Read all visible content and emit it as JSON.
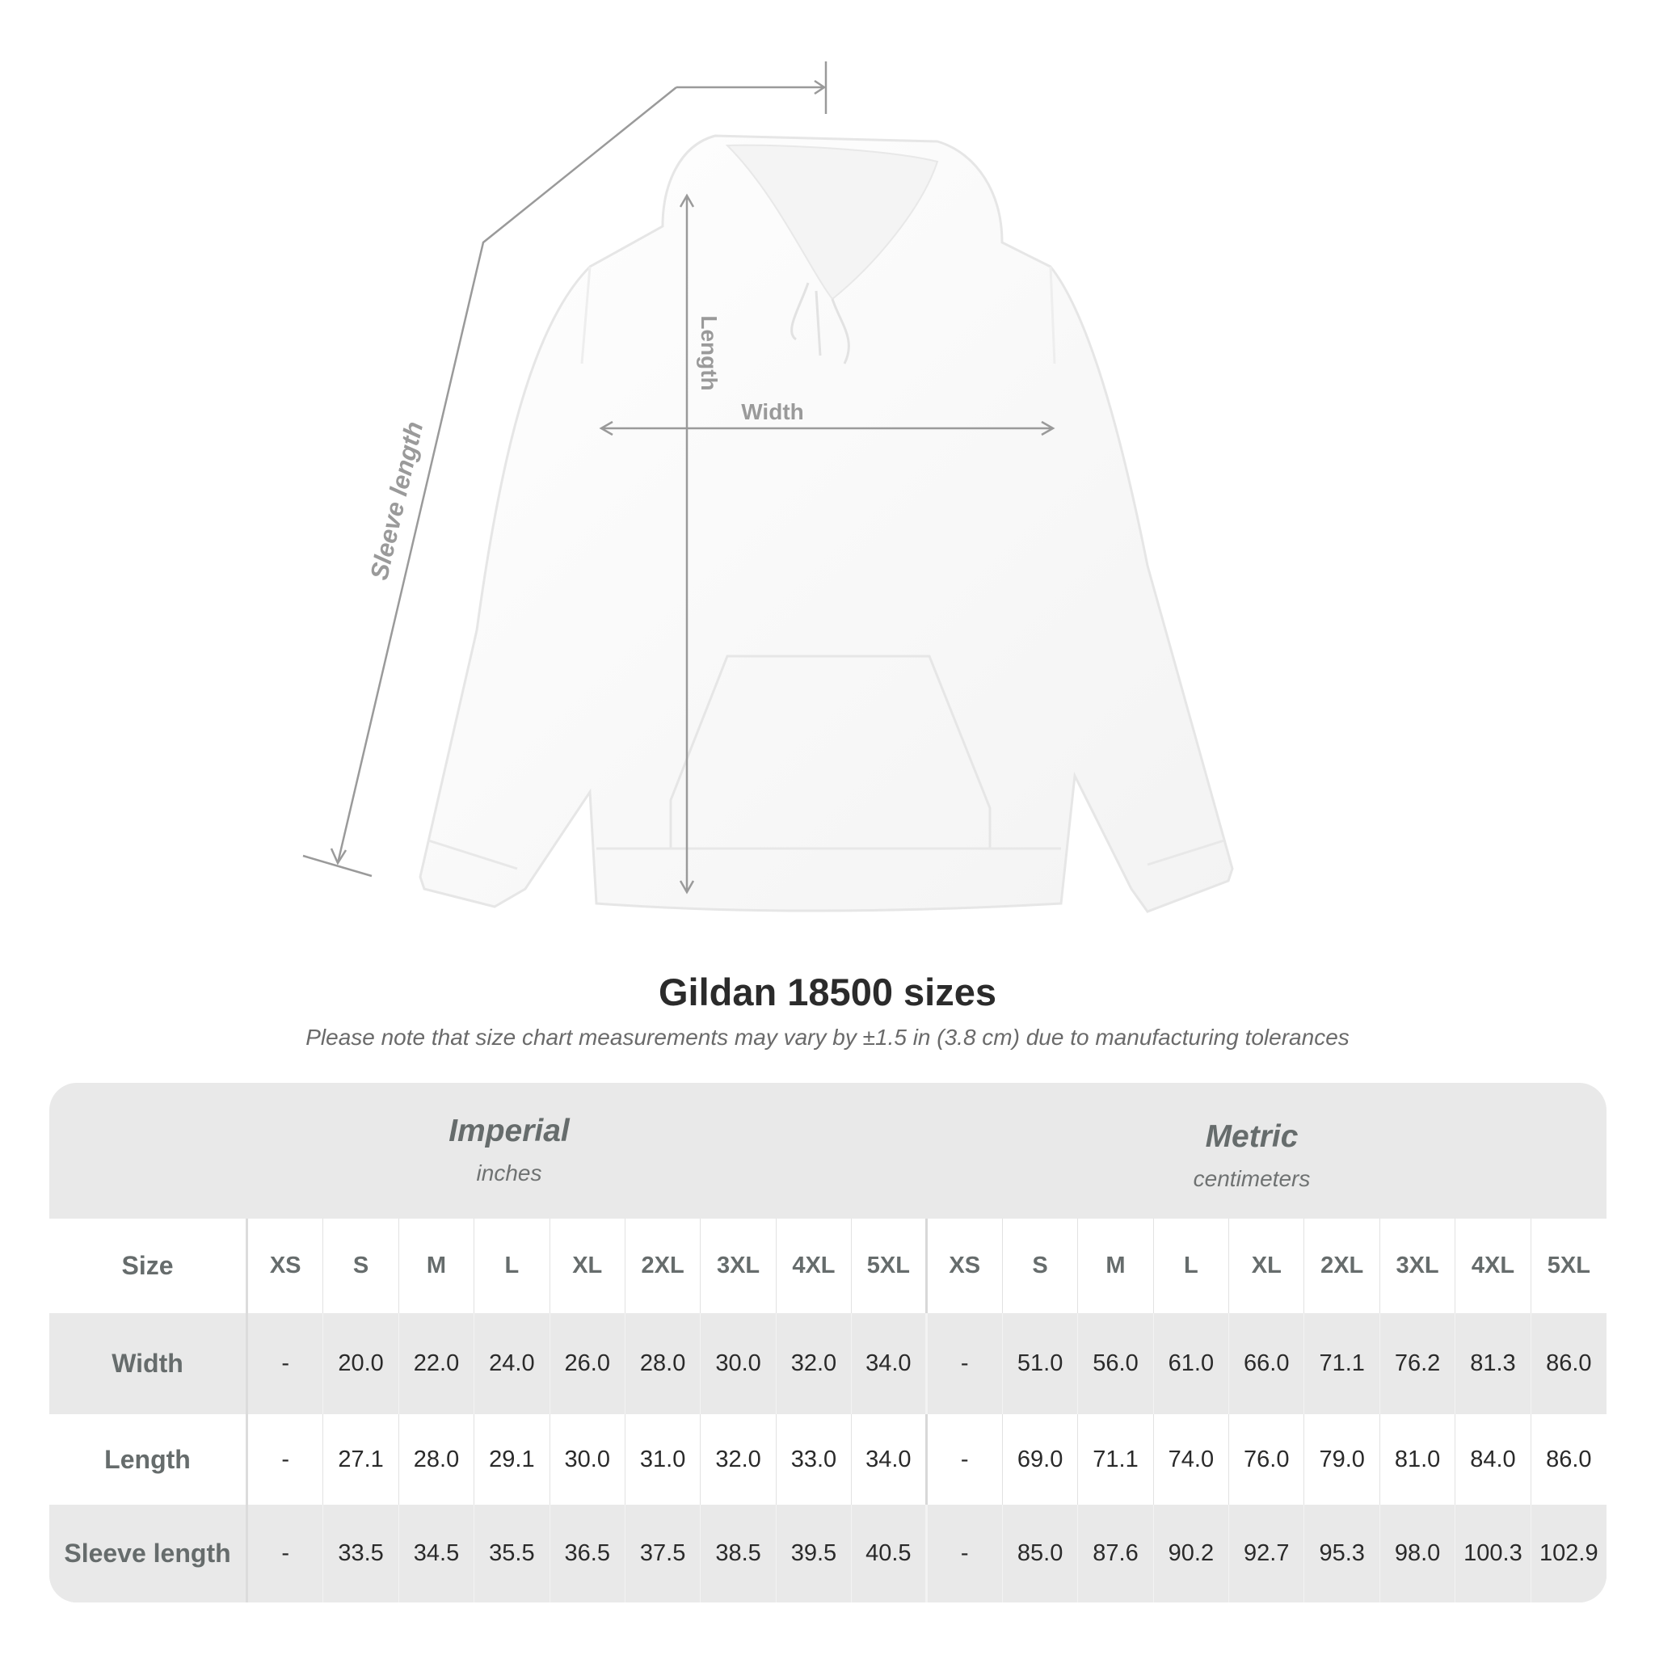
{
  "diagram": {
    "sleeve_label": "Sleeve length",
    "length_label": "Length",
    "width_label": "Width",
    "line_color": "#9a9a9a"
  },
  "title": "Gildan 18500 sizes",
  "note": "Please note that size chart measurements may vary by ±1.5 in (3.8 cm) due to manufacturing tolerances",
  "table": {
    "imperial": {
      "label": "Imperial",
      "unit": "inches"
    },
    "metric": {
      "label": "Metric",
      "unit": "centimeters"
    },
    "size_label": "Size",
    "sizes": [
      "XS",
      "S",
      "M",
      "L",
      "XL",
      "2XL",
      "3XL",
      "4XL",
      "5XL"
    ],
    "rows": [
      {
        "label": "Width",
        "imperial": [
          "-",
          "20.0",
          "22.0",
          "24.0",
          "26.0",
          "28.0",
          "30.0",
          "32.0",
          "34.0"
        ],
        "metric": [
          "-",
          "51.0",
          "56.0",
          "61.0",
          "66.0",
          "71.1",
          "76.2",
          "81.3",
          "86.0"
        ]
      },
      {
        "label": "Length",
        "imperial": [
          "-",
          "27.1",
          "28.0",
          "29.1",
          "30.0",
          "31.0",
          "32.0",
          "33.0",
          "34.0"
        ],
        "metric": [
          "-",
          "69.0",
          "71.1",
          "74.0",
          "76.0",
          "79.0",
          "81.0",
          "84.0",
          "86.0"
        ]
      },
      {
        "label": "Sleeve length",
        "imperial": [
          "-",
          "33.5",
          "34.5",
          "35.5",
          "36.5",
          "37.5",
          "38.5",
          "39.5",
          "40.5"
        ],
        "metric": [
          "-",
          "85.0",
          "87.6",
          "90.2",
          "92.7",
          "95.3",
          "98.0",
          "100.3",
          "102.9"
        ]
      }
    ]
  }
}
